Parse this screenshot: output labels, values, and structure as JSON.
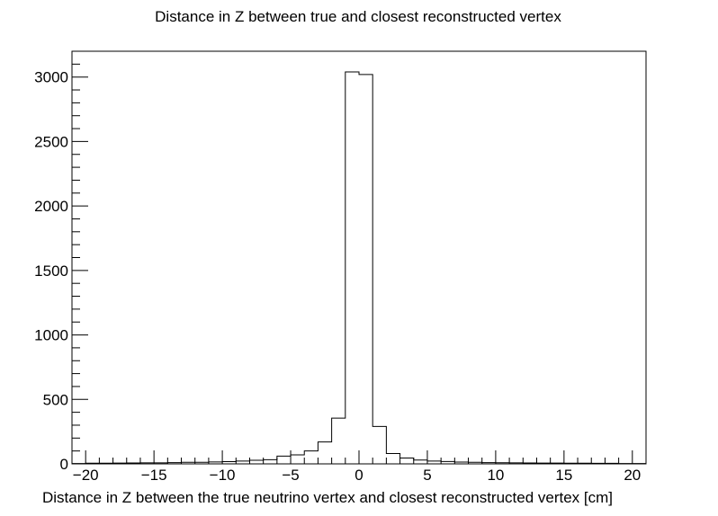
{
  "chart_data": {
    "type": "bar",
    "title": "Distance in Z between true and closest reconstructed vertex",
    "xlabel": "Distance in Z between the true neutrino vertex and closest reconstructed vertex [cm]",
    "ylabel": "",
    "xlim": [
      -21,
      21
    ],
    "ylim": [
      0,
      3200
    ],
    "grid": false,
    "x_ticks": [
      -20,
      -15,
      -10,
      -5,
      0,
      5,
      10,
      15,
      20
    ],
    "x_tick_labels": [
      "−20",
      "−15",
      "−10",
      "−5",
      "0",
      "5",
      "10",
      "15",
      "20"
    ],
    "y_ticks": [
      0,
      500,
      1000,
      1500,
      2000,
      2500,
      3000
    ],
    "y_tick_labels": [
      "0",
      "500",
      "1000",
      "1500",
      "2000",
      "2500",
      "3000"
    ],
    "bin_edges": [
      -21,
      -20,
      -19,
      -18,
      -17,
      -16,
      -15,
      -14,
      -13,
      -12,
      -11,
      -10,
      -9,
      -8,
      -7,
      -6,
      -5,
      -4,
      -3,
      -2,
      -1,
      0,
      1,
      2,
      3,
      4,
      5,
      6,
      7,
      8,
      9,
      10,
      11,
      12,
      13,
      14,
      15,
      16,
      17,
      18,
      19,
      20,
      21
    ],
    "values": [
      3,
      5,
      5,
      6,
      7,
      8,
      8,
      10,
      12,
      12,
      15,
      17,
      22,
      28,
      32,
      60,
      70,
      100,
      170,
      355,
      3040,
      3020,
      290,
      80,
      45,
      30,
      22,
      18,
      14,
      12,
      10,
      9,
      8,
      7,
      6,
      6,
      5,
      5,
      4,
      4,
      3,
      3
    ]
  }
}
